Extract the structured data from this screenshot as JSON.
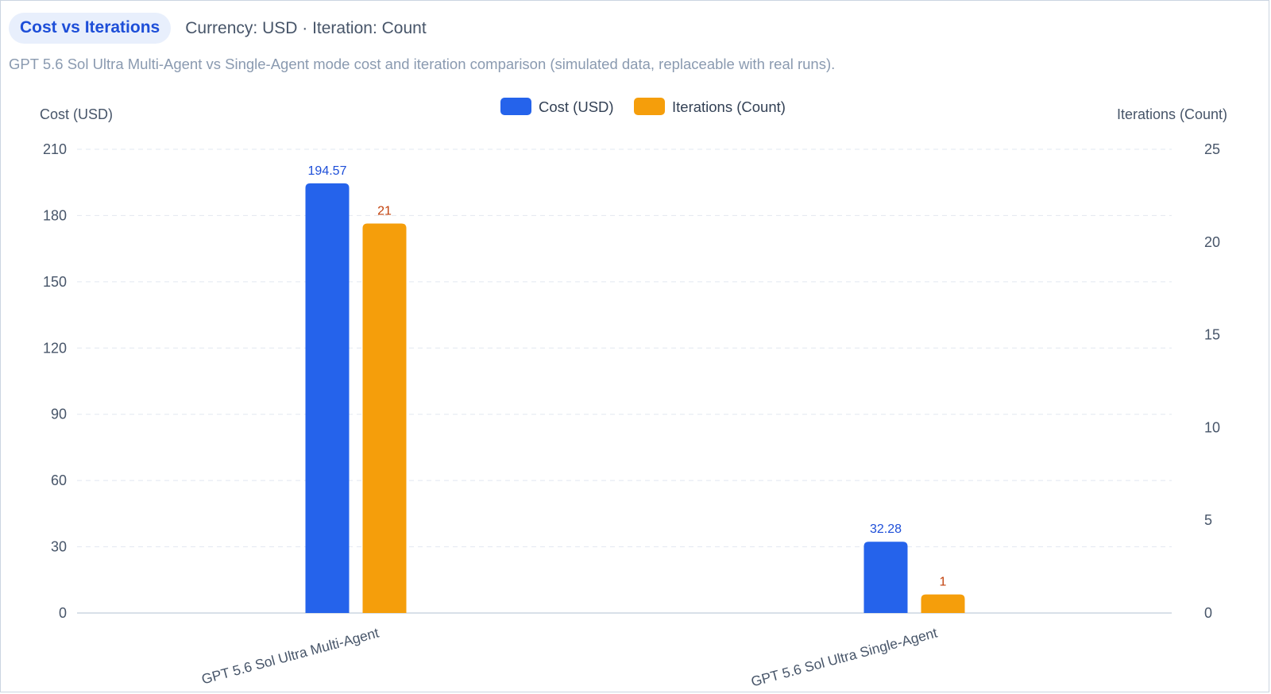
{
  "header": {
    "title": "Cost vs Iterations",
    "meta": "Currency: USD · Iteration: Count"
  },
  "subtitle": "GPT 5.6 Sol Ultra Multi-Agent vs Single-Agent mode cost and iteration comparison (simulated data, replaceable with real runs).",
  "colors": {
    "cost": "#2563eb",
    "iterations": "#f59e0b",
    "cost_label": "#1d4ed8",
    "iter_label": "#c2410c",
    "grid": "#e2e8f0",
    "axis": "#cbd5e1"
  },
  "chart_data": {
    "type": "bar",
    "title": "Cost vs Iterations",
    "categories": [
      "GPT 5.6 Sol Ultra Multi-Agent",
      "GPT 5.6 Sol Ultra Single-Agent"
    ],
    "series": [
      {
        "name": "Cost (USD)",
        "axis": "left",
        "values": [
          194.57,
          32.28
        ],
        "labels": [
          "194.57",
          "32.28"
        ]
      },
      {
        "name": "Iterations (Count)",
        "axis": "right",
        "values": [
          21,
          1
        ],
        "labels": [
          "21",
          "1"
        ]
      }
    ],
    "ylabel": "Cost (USD)",
    "y2label": "Iterations (Count)",
    "ylim": [
      0,
      210
    ],
    "y2lim": [
      0,
      25
    ],
    "yticks": [
      0,
      30,
      60,
      90,
      120,
      150,
      180,
      210
    ],
    "y2ticks": [
      0,
      5,
      10,
      15,
      20,
      25
    ],
    "grid": true,
    "legend": "top-center"
  }
}
